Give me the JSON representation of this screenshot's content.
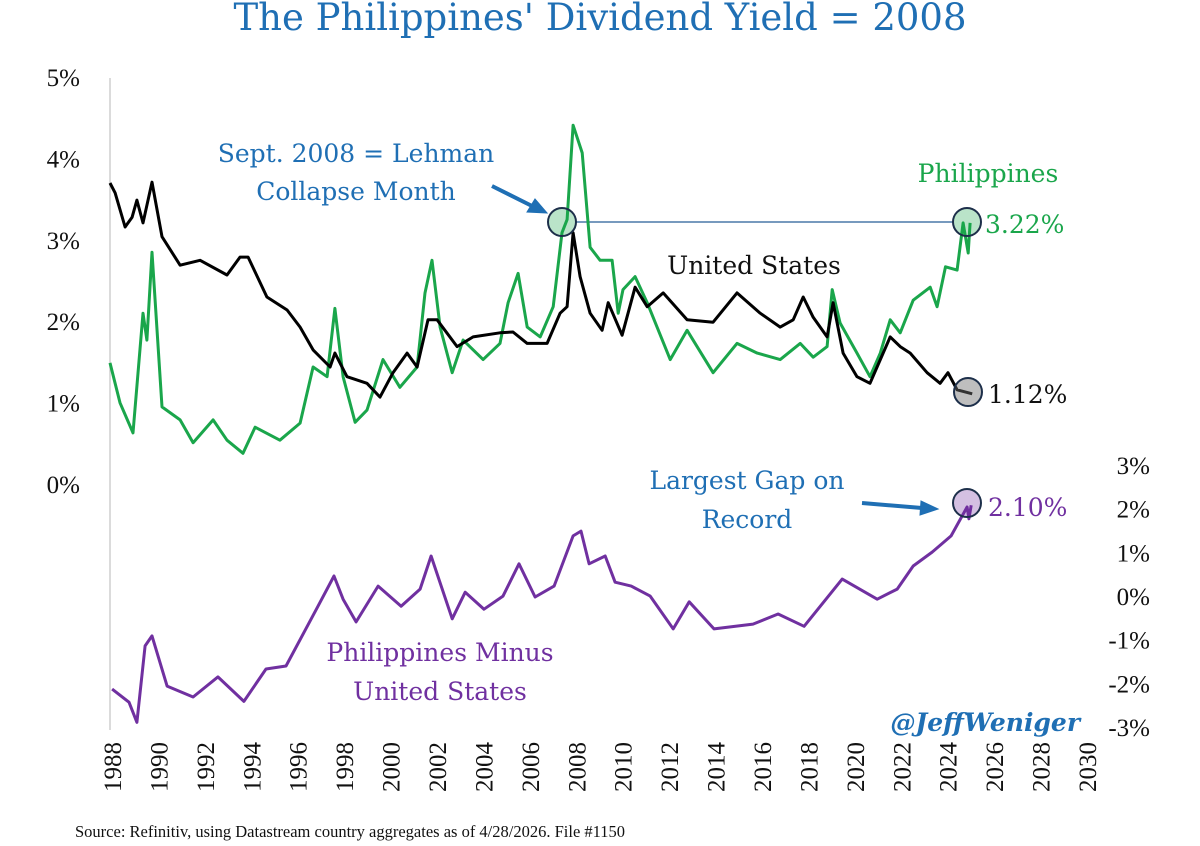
{
  "title": "The Philippines' Dividend Yield = 2008",
  "source": "Source: Refinitiv, using Datastream country aggregates as of 4/28/2026. File #1150",
  "watermark": "@JeffWeniger",
  "colors": {
    "title": "#1f6fb4",
    "philippines": "#1aa64b",
    "us": "#000000",
    "spread": "#7030a0",
    "annotation": "#1f6fb4",
    "refline": "#4a78a8"
  },
  "annotations": {
    "lehman_line1": "Sept. 2008 = Lehman",
    "lehman_line2": "Collapse Month",
    "gap_line1": "Largest Gap on",
    "gap_line2": "Record",
    "ph_label": "Philippines",
    "us_label": "United States",
    "spread_line1": "Philippines Minus",
    "spread_line2": "United States",
    "ph_last": "3.22%",
    "us_last": "1.12%",
    "spread_last": "2.10%"
  },
  "chart_data": {
    "type": "line",
    "title": "The Philippines' Dividend Yield = 2008",
    "xlim": [
      1988,
      2030
    ],
    "x_ticks": [
      "1988",
      "1990",
      "1992",
      "1994",
      "1996",
      "1998",
      "2000",
      "2002",
      "2004",
      "2006",
      "2008",
      "2010",
      "2012",
      "2014",
      "2016",
      "2018",
      "2020",
      "2022",
      "2024",
      "2026",
      "2028",
      "2030"
    ],
    "y_left": {
      "lim": [
        0,
        5
      ],
      "ticks": [
        "0%",
        "1%",
        "2%",
        "3%",
        "4%",
        "5%"
      ]
    },
    "y_right": {
      "lim": [
        -3,
        3
      ],
      "ticks": [
        "-3%",
        "-2%",
        "-1%",
        "0%",
        "1%",
        "2%",
        "3%"
      ]
    },
    "grid": false,
    "series": [
      {
        "name": "Philippines",
        "axis": "left",
        "points": [
          [
            1988.0,
            1.5
          ],
          [
            1988.43,
            1.01
          ],
          [
            1988.99,
            0.64
          ],
          [
            1989.42,
            2.11
          ],
          [
            1989.59,
            1.78
          ],
          [
            1989.81,
            2.86
          ],
          [
            1990.24,
            0.96
          ],
          [
            1991.02,
            0.8
          ],
          [
            1991.58,
            0.52
          ],
          [
            1992.44,
            0.8
          ],
          [
            1993.04,
            0.55
          ],
          [
            1993.73,
            0.39
          ],
          [
            1994.25,
            0.71
          ],
          [
            1995.32,
            0.55
          ],
          [
            1996.19,
            0.76
          ],
          [
            1996.75,
            1.45
          ],
          [
            1997.35,
            1.33
          ],
          [
            1997.69,
            2.17
          ],
          [
            1998.04,
            1.33
          ],
          [
            1998.56,
            0.77
          ],
          [
            1999.07,
            0.92
          ],
          [
            1999.76,
            1.54
          ],
          [
            2000.49,
            1.2
          ],
          [
            2001.23,
            1.45
          ],
          [
            2001.57,
            2.36
          ],
          [
            2001.87,
            2.76
          ],
          [
            2002.22,
            1.94
          ],
          [
            2002.74,
            1.38
          ],
          [
            2003.21,
            1.78
          ],
          [
            2004.07,
            1.54
          ],
          [
            2004.8,
            1.74
          ],
          [
            2005.15,
            2.24
          ],
          [
            2005.58,
            2.6
          ],
          [
            2005.97,
            1.94
          ],
          [
            2006.53,
            1.82
          ],
          [
            2007.09,
            2.19
          ],
          [
            2007.47,
            3.1
          ],
          [
            2007.69,
            3.26
          ],
          [
            2007.95,
            4.42
          ],
          [
            2008.34,
            4.08
          ],
          [
            2008.68,
            2.92
          ],
          [
            2009.11,
            2.76
          ],
          [
            2009.63,
            2.76
          ],
          [
            2009.89,
            2.11
          ],
          [
            2010.1,
            2.4
          ],
          [
            2010.62,
            2.56
          ],
          [
            2011.14,
            2.24
          ],
          [
            2012.13,
            1.54
          ],
          [
            2012.86,
            1.9
          ],
          [
            2013.98,
            1.38
          ],
          [
            2015.01,
            1.74
          ],
          [
            2015.88,
            1.62
          ],
          [
            2016.87,
            1.54
          ],
          [
            2017.73,
            1.74
          ],
          [
            2018.29,
            1.57
          ],
          [
            2018.89,
            1.7
          ],
          [
            2019.11,
            2.4
          ],
          [
            2019.45,
            1.99
          ],
          [
            2020.18,
            1.62
          ],
          [
            2020.74,
            1.33
          ],
          [
            2021.18,
            1.62
          ],
          [
            2021.61,
            2.03
          ],
          [
            2022.04,
            1.87
          ],
          [
            2022.6,
            2.27
          ],
          [
            2023.33,
            2.43
          ],
          [
            2023.63,
            2.19
          ],
          [
            2023.99,
            2.68
          ],
          [
            2024.49,
            2.64
          ],
          [
            2024.75,
            3.22
          ],
          [
            2024.97,
            2.85
          ],
          [
            2025.05,
            3.22
          ]
        ]
      },
      {
        "name": "United States",
        "axis": "left",
        "points": [
          [
            1988.0,
            3.71
          ],
          [
            1988.22,
            3.59
          ],
          [
            1988.65,
            3.17
          ],
          [
            1988.95,
            3.29
          ],
          [
            1989.16,
            3.5
          ],
          [
            1989.42,
            3.22
          ],
          [
            1989.81,
            3.72
          ],
          [
            1990.24,
            3.05
          ],
          [
            1991.02,
            2.7
          ],
          [
            1991.88,
            2.76
          ],
          [
            1993.04,
            2.58
          ],
          [
            1993.6,
            2.8
          ],
          [
            1993.95,
            2.8
          ],
          [
            1994.76,
            2.31
          ],
          [
            1995.63,
            2.15
          ],
          [
            1996.19,
            1.94
          ],
          [
            1996.75,
            1.66
          ],
          [
            1997.48,
            1.45
          ],
          [
            1997.69,
            1.62
          ],
          [
            1998.21,
            1.33
          ],
          [
            1999.07,
            1.25
          ],
          [
            1999.63,
            1.08
          ],
          [
            2000.19,
            1.38
          ],
          [
            2000.8,
            1.62
          ],
          [
            2001.23,
            1.45
          ],
          [
            2001.7,
            2.03
          ],
          [
            2002.09,
            2.03
          ],
          [
            2002.95,
            1.7
          ],
          [
            2003.64,
            1.82
          ],
          [
            2004.8,
            1.87
          ],
          [
            2005.36,
            1.88
          ],
          [
            2005.97,
            1.74
          ],
          [
            2006.83,
            1.74
          ],
          [
            2007.39,
            2.11
          ],
          [
            2007.69,
            2.19
          ],
          [
            2007.95,
            3.1
          ],
          [
            2008.25,
            2.56
          ],
          [
            2008.68,
            2.11
          ],
          [
            2009.2,
            1.9
          ],
          [
            2009.46,
            2.24
          ],
          [
            2010.06,
            1.84
          ],
          [
            2010.62,
            2.43
          ],
          [
            2011.14,
            2.19
          ],
          [
            2011.83,
            2.36
          ],
          [
            2012.86,
            2.03
          ],
          [
            2013.98,
            2.0
          ],
          [
            2015.01,
            2.36
          ],
          [
            2016.01,
            2.11
          ],
          [
            2016.87,
            1.94
          ],
          [
            2017.43,
            2.03
          ],
          [
            2017.86,
            2.31
          ],
          [
            2018.29,
            2.06
          ],
          [
            2018.89,
            1.82
          ],
          [
            2019.15,
            2.24
          ],
          [
            2019.58,
            1.62
          ],
          [
            2020.18,
            1.33
          ],
          [
            2020.74,
            1.25
          ],
          [
            2021.18,
            1.54
          ],
          [
            2021.61,
            1.82
          ],
          [
            2022.04,
            1.7
          ],
          [
            2022.47,
            1.62
          ],
          [
            2023.2,
            1.38
          ],
          [
            2023.76,
            1.25
          ],
          [
            2024.1,
            1.38
          ],
          [
            2024.49,
            1.17
          ],
          [
            2025.14,
            1.12
          ]
        ]
      },
      {
        "name": "Philippines Minus United States",
        "axis": "right",
        "points": [
          [
            1988.09,
            -2.11
          ],
          [
            1988.82,
            -2.41
          ],
          [
            1989.16,
            -2.87
          ],
          [
            1989.51,
            -1.12
          ],
          [
            1989.81,
            -0.89
          ],
          [
            1990.46,
            -2.04
          ],
          [
            1991.58,
            -2.29
          ],
          [
            1992.65,
            -1.83
          ],
          [
            1993.77,
            -2.39
          ],
          [
            1994.72,
            -1.65
          ],
          [
            1995.58,
            -1.58
          ],
          [
            1996.96,
            -0.21
          ],
          [
            1997.65,
            0.48
          ],
          [
            1998.04,
            -0.05
          ],
          [
            1998.6,
            -0.57
          ],
          [
            1999.55,
            0.25
          ],
          [
            2000.54,
            -0.21
          ],
          [
            2001.36,
            0.18
          ],
          [
            2001.83,
            0.94
          ],
          [
            2002.74,
            -0.5
          ],
          [
            2003.3,
            0.11
          ],
          [
            2004.11,
            -0.28
          ],
          [
            2004.93,
            0.02
          ],
          [
            2005.62,
            0.76
          ],
          [
            2006.31,
            0.0
          ],
          [
            2007.13,
            0.25
          ],
          [
            2007.95,
            1.4
          ],
          [
            2008.29,
            1.51
          ],
          [
            2008.64,
            0.76
          ],
          [
            2009.33,
            0.94
          ],
          [
            2009.76,
            0.34
          ],
          [
            2010.45,
            0.25
          ],
          [
            2011.27,
            0.02
          ],
          [
            2012.26,
            -0.73
          ],
          [
            2012.95,
            -0.11
          ],
          [
            2014.02,
            -0.73
          ],
          [
            2015.7,
            -0.62
          ],
          [
            2016.78,
            -0.39
          ],
          [
            2017.9,
            -0.67
          ],
          [
            2019.54,
            0.41
          ],
          [
            2021.05,
            -0.05
          ],
          [
            2021.91,
            0.18
          ],
          [
            2022.6,
            0.71
          ],
          [
            2023.42,
            1.03
          ],
          [
            2024.23,
            1.4
          ],
          [
            2024.92,
            2.06
          ],
          [
            2025.0,
            1.79
          ],
          [
            2025.1,
            2.1
          ]
        ]
      }
    ]
  }
}
